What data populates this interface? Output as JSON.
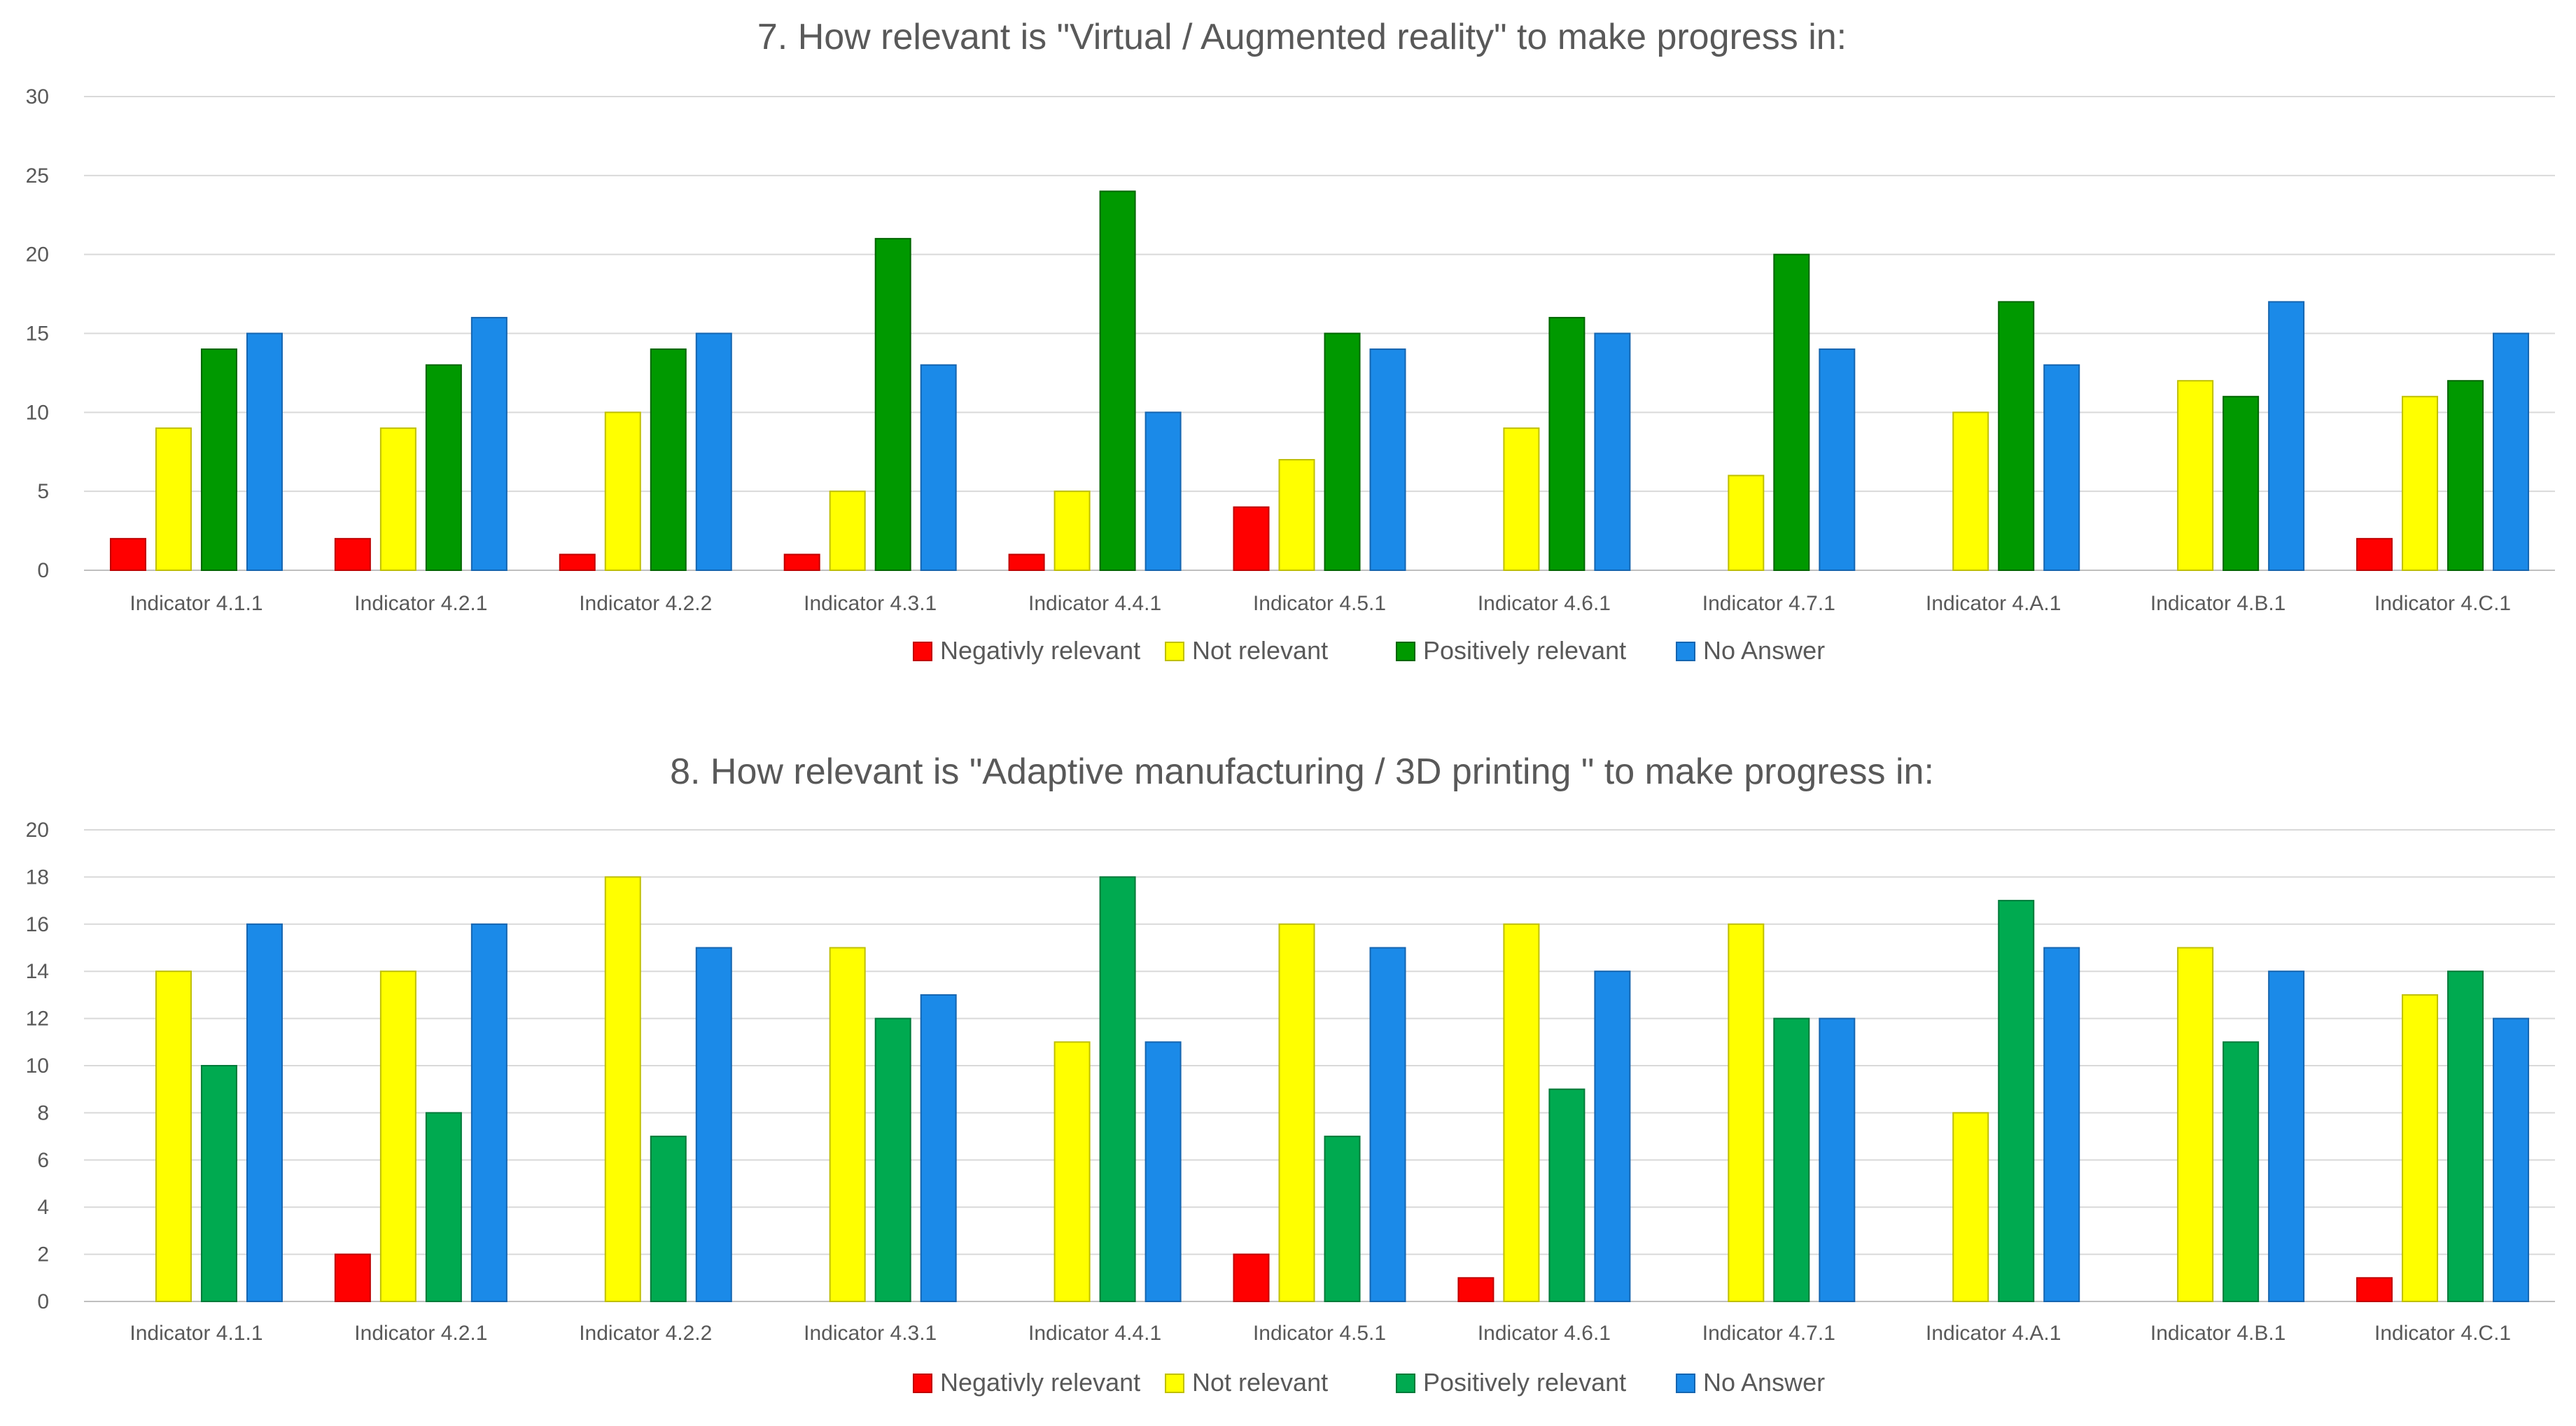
{
  "chart_data": [
    {
      "type": "bar",
      "title": "7. How relevant is \"Virtual / Augmented reality\" to make progress in:",
      "xlabel": "",
      "ylabel": "",
      "ylim": [
        0,
        30
      ],
      "yticks": [
        0,
        5,
        10,
        15,
        20,
        25,
        30
      ],
      "grid": true,
      "legend_position": "bottom",
      "categories": [
        "Indicator 4.1.1",
        "Indicator 4.2.1",
        "Indicator 4.2.2",
        "Indicator 4.3.1",
        "Indicator 4.4.1",
        "Indicator 4.5.1",
        "Indicator 4.6.1",
        "Indicator 4.7.1",
        "Indicator 4.A.1",
        "Indicator 4.B.1",
        "Indicator 4.C.1"
      ],
      "series": [
        {
          "name": "Negativly relevant",
          "color": "#ff0000",
          "stroke": "#c00000",
          "values": [
            2,
            2,
            1,
            1,
            1,
            4,
            0,
            0,
            0,
            0,
            2
          ]
        },
        {
          "name": "Not relevant",
          "color": "#ffff00",
          "stroke": "#bfbf00",
          "values": [
            9,
            9,
            10,
            5,
            5,
            7,
            9,
            6,
            10,
            12,
            11
          ]
        },
        {
          "name": "Positively relevant",
          "color": "#009900",
          "stroke": "#006600",
          "values": [
            14,
            13,
            14,
            21,
            24,
            15,
            16,
            20,
            17,
            11,
            12
          ]
        },
        {
          "name": "No Answer",
          "color": "#1b8ae8",
          "stroke": "#1565b0",
          "values": [
            15,
            16,
            15,
            13,
            10,
            14,
            15,
            14,
            13,
            17,
            15
          ]
        }
      ]
    },
    {
      "type": "bar",
      "title": "8. How relevant is \"Adaptive manufacturing / 3D printing \" to make progress in:",
      "xlabel": "",
      "ylabel": "",
      "ylim": [
        0,
        20
      ],
      "yticks": [
        0,
        2,
        4,
        6,
        8,
        10,
        12,
        14,
        16,
        18,
        20
      ],
      "grid": true,
      "legend_position": "bottom",
      "categories": [
        "Indicator 4.1.1",
        "Indicator 4.2.1",
        "Indicator 4.2.2",
        "Indicator 4.3.1",
        "Indicator 4.4.1",
        "Indicator 4.5.1",
        "Indicator 4.6.1",
        "Indicator 4.7.1",
        "Indicator 4.A.1",
        "Indicator 4.B.1",
        "Indicator 4.C.1"
      ],
      "series": [
        {
          "name": "Negativly relevant",
          "color": "#ff0000",
          "stroke": "#c00000",
          "values": [
            0,
            2,
            0,
            0,
            0,
            2,
            1,
            0,
            0,
            0,
            1
          ]
        },
        {
          "name": "Not relevant",
          "color": "#ffff00",
          "stroke": "#bfbf00",
          "values": [
            14,
            14,
            18,
            15,
            11,
            16,
            16,
            16,
            8,
            15,
            13
          ]
        },
        {
          "name": "Positively relevant",
          "color": "#00aa50",
          "stroke": "#007a39",
          "values": [
            10,
            8,
            7,
            12,
            18,
            7,
            9,
            12,
            17,
            11,
            14
          ]
        },
        {
          "name": "No Answer",
          "color": "#1b8ae8",
          "stroke": "#1565b0",
          "values": [
            16,
            16,
            15,
            13,
            11,
            15,
            14,
            12,
            15,
            14,
            12
          ]
        }
      ]
    }
  ]
}
